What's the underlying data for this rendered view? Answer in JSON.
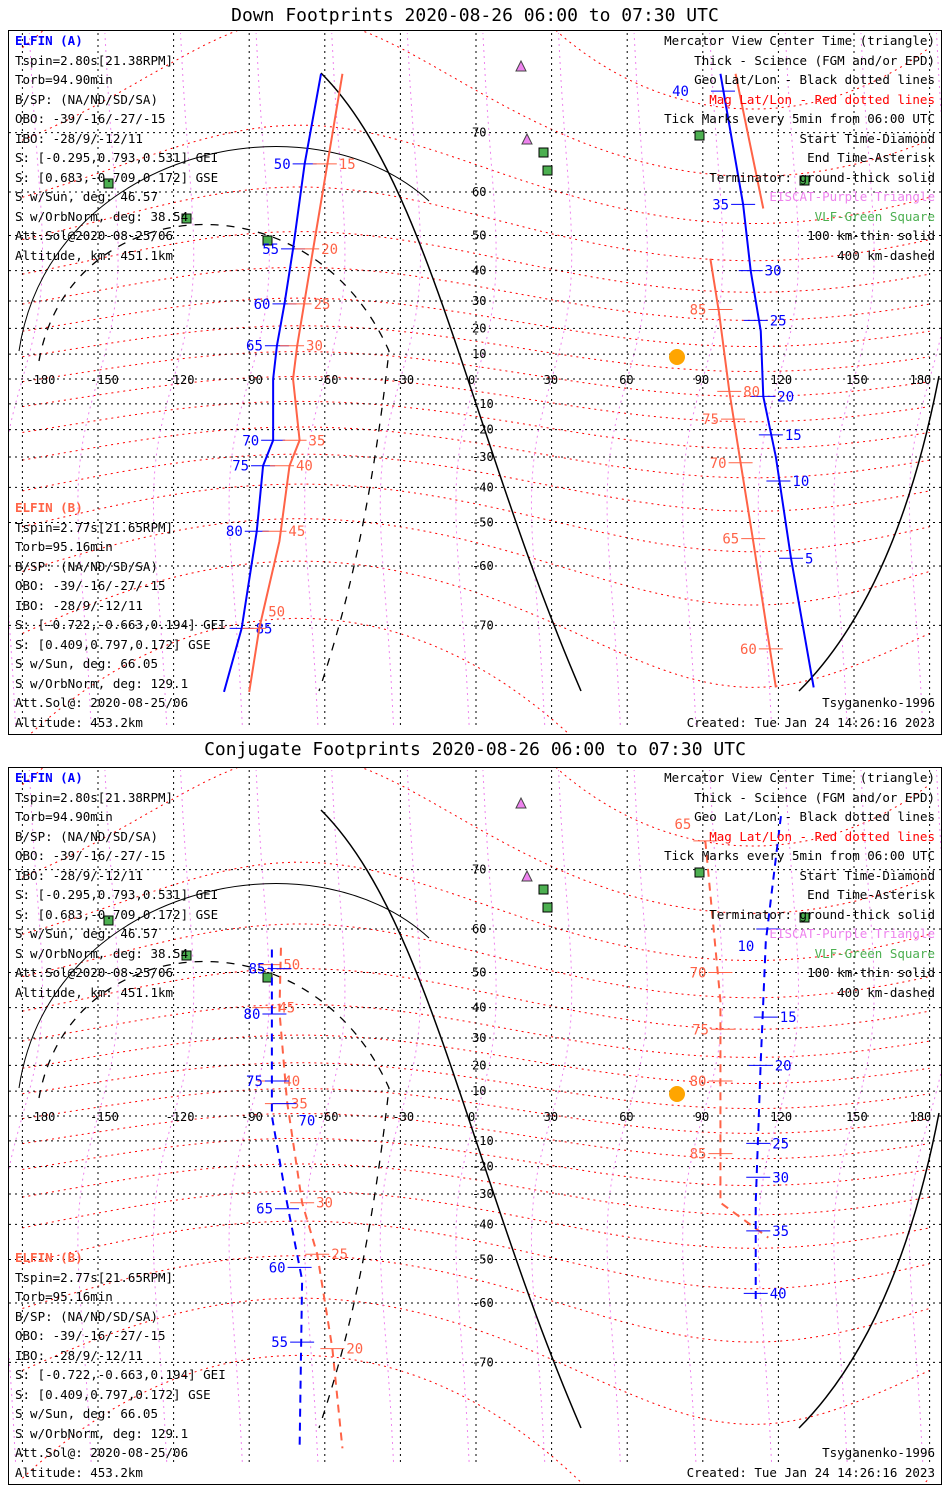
{
  "colors": {
    "elfin_a": "#0000ff",
    "elfin_b": "#ff6347",
    "eiscat": "#ee82ee",
    "vlf": "#4caf50",
    "mag": "#ff0000",
    "sun": "#ffa500"
  },
  "panels": [
    {
      "title": "Down Footprints 2020-08-26 06:00 to 07:30 UTC",
      "style": "solid",
      "elfin_a": {
        "name": "ELFIN (A)",
        "lines": [
          "Tspin=2.80s[21.38RPM]",
          "Torb=94.90min",
          "B/SP: (NA/ND/SD/SA)",
          "OBO: -39/-16/-27/-15",
          "IBO: -28/9/-12/11",
          "S: [-0.295,0.793,0.531] GEI",
          "S: [0.683,-0.709,0.172] GSE",
          "S w/Sun, deg: 46.57",
          "S w/OrbNorm, deg: 38.54",
          "Att.Sol@2020-08-25/06",
          "Altitude, km: 451.1km"
        ]
      },
      "elfin_b": {
        "name": "ELFIN (B)",
        "lines": [
          "Tspin=2.77s[21.65RPM]",
          "Torb=95.16min",
          "B/SP: (NA/ND/SD/SA)",
          "OBO: -39/-16/-27/-15",
          "IBO: -28/9/-12/11",
          "S: [-0.722,-0.663,0.194] GEI",
          "S: [0.409,0.797,0.172] GSE",
          "S w/Sun, deg: 66.05",
          "S w/OrbNorm, deg: 129.1",
          "Att.Sol@: 2020-08-25/06",
          "Altitude: 453.2km"
        ]
      },
      "tracks": [
        {
          "sat": "A",
          "pts": [
            [
              76.7,
              -61.5
            ],
            [
              65.2,
              -68
            ],
            [
              46.4,
              -72.6
            ],
            [
              29,
              -76
            ],
            [
              13.3,
              -79
            ],
            [
              0,
              -80.5
            ],
            [
              -24,
              -80.5
            ],
            [
              -33,
              -84.5
            ],
            [
              -52.2,
              -87
            ],
            [
              -70.4,
              -93
            ],
            [
              -77.4,
              -100
            ]
          ],
          "ticks": [
            [
              65.2,
              -68,
              "50"
            ],
            [
              46.4,
              -72.6,
              "55"
            ],
            [
              29,
              -76,
              "60"
            ],
            [
              13.3,
              -79,
              "65"
            ],
            [
              -24,
              -80.5,
              "70"
            ],
            [
              -33,
              -84.5,
              "75"
            ],
            [
              -52.2,
              -87,
              "80"
            ],
            [
              -70.4,
              -93,
              "85"
            ]
          ]
        },
        {
          "sat": "B",
          "pts": [
            [
              76.7,
              -53
            ],
            [
              46,
              -64.7
            ],
            [
              13,
              -71
            ],
            [
              0,
              -72.6
            ],
            [
              -24,
              -70
            ],
            [
              -33,
              -74
            ],
            [
              -54.6,
              -78
            ],
            [
              -70.4,
              -86
            ],
            [
              -77.4,
              -90
            ]
          ],
          "ticks": [
            [
              65.2,
              -60,
              "15"
            ],
            [
              46.4,
              -67,
              "20"
            ],
            [
              29,
              -70,
              "25"
            ],
            [
              13.3,
              -73,
              "30"
            ],
            [
              -24,
              -72,
              "35"
            ],
            [
              -33,
              -77,
              "40"
            ],
            [
              -52.2,
              -80,
              "45"
            ],
            [
              -70.4,
              -88,
              "50"
            ]
          ]
        },
        {
          "sat": "A",
          "pts": [
            [
              76.7,
              97
            ],
            [
              57.4,
              106
            ],
            [
              40,
              109
            ],
            [
              19,
              113
            ],
            [
              -7,
              114
            ],
            [
              -30,
              119
            ],
            [
              -58.4,
              125
            ],
            [
              -77,
              134
            ]
          ],
          "ticks": [
            [
              75,
              98,
              "40"
            ],
            [
              57.4,
              106,
              "35"
            ],
            [
              40,
              109,
              "30"
            ],
            [
              23,
              111,
              "25"
            ],
            [
              -7,
              114,
              "20"
            ],
            [
              -22,
              117,
              "15"
            ],
            [
              -38,
              120,
              "10"
            ],
            [
              -58.4,
              125,
              "5"
            ]
          ]
        },
        {
          "sat": "B",
          "pts": [
            [
              76.7,
              103
            ],
            [
              56.5,
              114
            ]
          ],
          "ticks": []
        },
        {
          "sat": "B",
          "pts": [
            [
              43.6,
              93
            ],
            [
              25.5,
              96.5
            ],
            [
              -4.8,
              100.5
            ],
            [
              -32,
              105
            ],
            [
              -54.6,
              110
            ],
            [
              -77,
              119
            ]
          ],
          "ticks": [
            [
              27,
              97,
              "85"
            ],
            [
              -5,
              100.5,
              "80"
            ],
            [
              -16,
              102,
              "75"
            ],
            [
              -32,
              105,
              "70"
            ],
            [
              -54,
              110,
              "65"
            ],
            [
              -73,
              117,
              "60"
            ]
          ]
        }
      ]
    },
    {
      "title": "Conjugate Footprints 2020-08-26 06:00 to 07:30 UTC",
      "style": "dashed",
      "elfin_a": {
        "name": "ELFIN (A)",
        "lines": [
          "Tspin=2.80s[21.38RPM]",
          "Torb=94.90min",
          "B/SP: (NA/ND/SD/SA)",
          "OBO: -39/-16/-27/-15",
          "IBO: -28/9/-12/11",
          "S: [-0.295,0.793,0.531] GEI",
          "S: [0.683,-0.709,0.172] GSE",
          "S w/Sun, deg: 46.57",
          "S w/OrbNorm, deg: 38.54",
          "Att.Sol@2020-08-25/06",
          "Altitude, km: 451.1km"
        ]
      },
      "elfin_b": {
        "name": "ELFIN (B)",
        "lines": [
          "Tspin=2.77s[21.65RPM]",
          "Torb=95.16min",
          "B/SP: (NA/ND/SD/SA)",
          "OBO: -39/-16/-27/-15",
          "IBO: -28/9/-12/11",
          "S: [-0.722,-0.663,0.194] GEI",
          "S: [0.409,0.797,0.172] GSE",
          "S w/Sun, deg: 66.05",
          "S w/OrbNorm, deg: 129.1",
          "Att.Sol@: 2020-08-25/06",
          "Altitude: 453.2km"
        ]
      },
      "tracks": [
        {
          "sat": "B",
          "pts": [
            [
              56,
              -77.4
            ],
            [
              38.9,
              -78
            ],
            [
              6,
              -75
            ],
            [
              -33,
              -69
            ],
            [
              -48.6,
              -63
            ],
            [
              -68,
              -57
            ],
            [
              -79,
              -53
            ]
          ],
          "ticks": [
            [
              52,
              -82,
              "50"
            ],
            [
              40,
              -84,
              "45"
            ],
            [
              14,
              -82,
              "40"
            ],
            [
              5,
              -79,
              "35"
            ],
            [
              -33,
              -69,
              "30"
            ],
            [
              -48.6,
              -63,
              "25"
            ],
            [
              -68,
              -57,
              "20"
            ]
          ]
        },
        {
          "sat": "A",
          "pts": [
            [
              55.6,
              -81
            ],
            [
              0,
              -81
            ],
            [
              -33,
              -75
            ],
            [
              -55,
              -69
            ],
            [
              -79,
              -70
            ]
          ],
          "ticks": [
            [
              51,
              -78,
              "85"
            ],
            [
              38,
              -80,
              "80"
            ],
            [
              14,
              -79,
              "75"
            ],
            [
              5,
              -76,
              "70"
            ],
            [
              -35,
              -75,
              "65"
            ],
            [
              -52,
              -70,
              "60"
            ],
            [
              -67,
              -69,
              "55"
            ]
          ]
        },
        {
          "sat": "B",
          "pts": [
            [
              73.6,
              91
            ],
            [
              42,
              97
            ],
            [
              -33,
              97
            ],
            [
              -44,
              116
            ]
          ],
          "ticks": [
            [
              73.6,
              91,
              "65"
            ],
            [
              50,
              97,
              "70"
            ],
            [
              33,
              98,
              "75"
            ],
            [
              14,
              97,
              "80"
            ],
            [
              -15,
              97,
              "85"
            ]
          ]
        },
        {
          "sat": "A",
          "pts": [
            [
              76.2,
              121
            ],
            [
              57.4,
              115
            ],
            [
              21.7,
              113
            ],
            [
              -33,
              111
            ],
            [
              -60,
              111
            ]
          ],
          "ticks": [
            [
              60,
              116,
              "10"
            ],
            [
              37,
              115,
              "15"
            ],
            [
              20,
              113,
              "20"
            ],
            [
              -11,
              112,
              "25"
            ],
            [
              -24,
              112,
              "30"
            ],
            [
              -42,
              112,
              "35"
            ],
            [
              -58,
              111,
              "40"
            ]
          ]
        }
      ]
    }
  ],
  "legend": [
    {
      "text": "Mercator View Center Time (triangle)",
      "color": "#000000"
    },
    {
      "text": "Thick - Science (FGM and/or EPD)",
      "color": "#000000"
    },
    {
      "text": "Geo Lat/Lon - Black dotted lines",
      "color": "#000000"
    },
    {
      "text": "Mag Lat/Lon - Red dotted lines",
      "color": "#ff0000"
    },
    {
      "text": "Tick Marks every 5min from 06:00 UTC",
      "color": "#000000"
    },
    {
      "text": "Start Time-Diamond",
      "color": "#000000"
    },
    {
      "text": "End Time-Asterisk",
      "color": "#000000"
    },
    {
      "text": "Terminator: ground-thick solid",
      "color": "#000000"
    },
    {
      "text": "EISCAT-Purple Triangle",
      "color": "#ee82ee"
    },
    {
      "text": "VLF-Green Square",
      "color": "#4caf50"
    },
    {
      "text": "100 km-thin solid",
      "color": "#000000"
    },
    {
      "text": "400 km-dashed",
      "color": "#000000"
    }
  ],
  "footer": {
    "model": "Tsyganenko-1996",
    "created": "Created: Tue Jan 24 14:26:16 2023"
  },
  "chart_data": {
    "type": "scatter",
    "projection": "mercator",
    "lon_ticks": [
      "-180",
      "-150",
      "-120",
      "-90",
      "-60",
      "-30",
      "0",
      "30",
      "60",
      "90",
      "120",
      "150",
      "180"
    ],
    "lat_ticks": [
      "70",
      "60",
      "50",
      "40",
      "30",
      "20",
      "10",
      "-10",
      "-20",
      "-30",
      "-40",
      "-50",
      "-60",
      "-70"
    ]
  }
}
